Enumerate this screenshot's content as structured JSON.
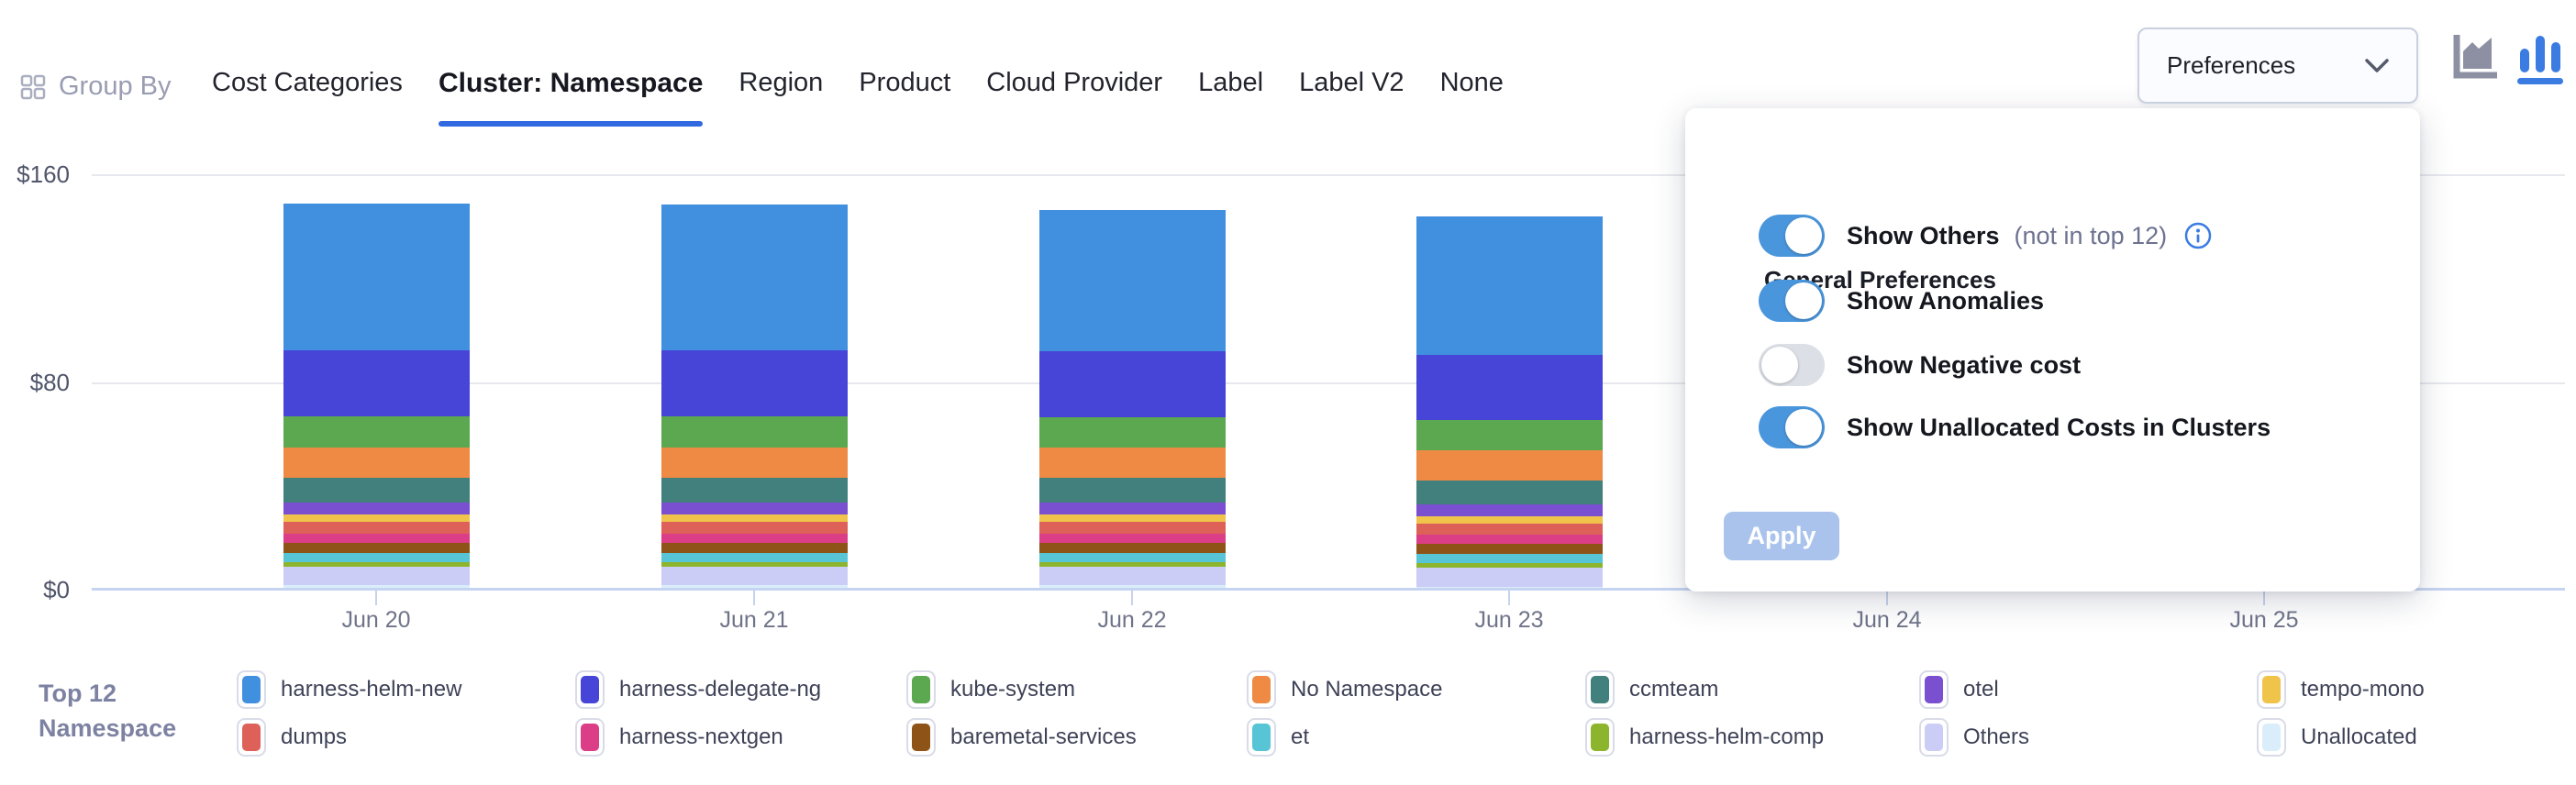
{
  "header": {
    "group_by": {
      "label": "Group By"
    },
    "tabs": [
      {
        "label": "Cost Categories",
        "active": false
      },
      {
        "label": "Cluster: Namespace",
        "active": true
      },
      {
        "label": "Region",
        "active": false
      },
      {
        "label": "Product",
        "active": false
      },
      {
        "label": "Cloud Provider",
        "active": false
      },
      {
        "label": "Label",
        "active": false
      },
      {
        "label": "Label V2",
        "active": false
      },
      {
        "label": "None",
        "active": false
      }
    ],
    "preferences_button": {
      "label": "Preferences"
    },
    "chart_type_icons": [
      {
        "name": "area-chart-icon",
        "selected": false,
        "color": "#8d90a3"
      },
      {
        "name": "bar-chart-icon",
        "selected": true,
        "color": "#3b7ce2"
      }
    ]
  },
  "preferences_panel": {
    "title": "General Preferences",
    "toggles": [
      {
        "label": "Show Others",
        "suffix": "(not in top 12)",
        "has_info_icon": true,
        "on": true
      },
      {
        "label": "Show Anomalies",
        "suffix": "",
        "has_info_icon": false,
        "on": true
      },
      {
        "label": "Show Negative cost",
        "suffix": "",
        "has_info_icon": false,
        "on": false
      },
      {
        "label": "Show Unallocated Costs in Clusters",
        "suffix": "",
        "has_info_icon": false,
        "on": true
      }
    ],
    "apply_label": "Apply",
    "apply_enabled": false
  },
  "legend": {
    "title": "Top 12 Namespace"
  },
  "colors": {
    "accent_underline": "#3069e0",
    "toggle_on": "#4a96dd",
    "apply_disabled_bg": "#a9c3ec",
    "icon_selected": "#3b7ce2",
    "icon_unselected": "#8d90a3",
    "axis_line": "#c5d4f0",
    "gridline": "#e7e8ee"
  },
  "chart_data": {
    "type": "bar",
    "stacked": true,
    "categories": [
      "Jun 20",
      "Jun 21",
      "Jun 22",
      "Jun 23",
      "Jun 24",
      "Jun 25"
    ],
    "visible_categories": [
      "Jun 20",
      "Jun 21",
      "Jun 22",
      "Jun 23"
    ],
    "note": "Bars for Jun 24 and Jun 25 are hidden behind the open Preferences panel",
    "unit": "$",
    "ylim": [
      0,
      160
    ],
    "yticks": [
      {
        "value": 0,
        "label": "$0"
      },
      {
        "value": 80,
        "label": "$80"
      },
      {
        "value": 160,
        "label": "$160"
      }
    ],
    "legend_position": "bottom",
    "series": [
      {
        "name": "harness-helm-new",
        "color": "#4190e0",
        "values": [
          56.5,
          56.0,
          54.6,
          53.4
        ]
      },
      {
        "name": "harness-delegate-ng",
        "color": "#4744d8",
        "values": [
          25.4,
          25.4,
          25.2,
          25.0
        ]
      },
      {
        "name": "kube-system",
        "color": "#5ca850",
        "values": [
          12.0,
          12.0,
          11.9,
          11.8
        ]
      },
      {
        "name": "No Namespace",
        "color": "#ee8a43",
        "values": [
          11.7,
          11.7,
          11.6,
          11.5
        ]
      },
      {
        "name": "ccmteam",
        "color": "#41807c",
        "values": [
          9.5,
          9.5,
          9.4,
          9.3
        ]
      },
      {
        "name": "otel",
        "color": "#7a4fd0",
        "values": [
          4.6,
          4.6,
          4.6,
          4.5
        ]
      },
      {
        "name": "tempo-mono",
        "color": "#f0c34b",
        "values": [
          3.0,
          3.0,
          3.0,
          3.0
        ]
      },
      {
        "name": "dumps",
        "color": "#dd6158",
        "values": [
          4.4,
          4.4,
          4.4,
          4.3
        ]
      },
      {
        "name": "harness-nextgen",
        "color": "#dc3d87",
        "values": [
          3.7,
          3.7,
          3.7,
          3.6
        ]
      },
      {
        "name": "baremetal-services",
        "color": "#8e5317",
        "values": [
          3.9,
          3.9,
          3.9,
          3.8
        ]
      },
      {
        "name": "et",
        "color": "#57c5d5",
        "values": [
          3.5,
          3.5,
          3.5,
          3.4
        ]
      },
      {
        "name": "harness-helm-comp",
        "color": "#8cb52d",
        "values": [
          1.8,
          1.8,
          1.8,
          1.8
        ]
      },
      {
        "name": "Others",
        "color": "#cbcdf6",
        "values": [
          7.1,
          7.1,
          7.1,
          7.5
        ]
      },
      {
        "name": "Unallocated",
        "color": "#d9edfb",
        "values": [
          1.6,
          1.6,
          1.6,
          1.0
        ]
      }
    ]
  }
}
